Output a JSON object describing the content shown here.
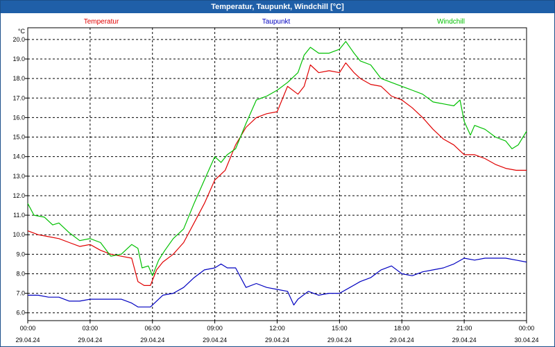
{
  "window": {
    "title": "Temperatur, Taupunkt, Windchill [°C]"
  },
  "chart_data": {
    "type": "line",
    "title": "Temperatur, Taupunkt, Windchill [°C]",
    "ylabel": "°C",
    "xlabel": "",
    "ylim": [
      5.6,
      20.6
    ],
    "xlim_hours": [
      0,
      24
    ],
    "grid": true,
    "legend_placement": "top",
    "y_ticks": [
      "6.0",
      "7.0",
      "8.0",
      "9.0",
      "10.0",
      "11.0",
      "12.0",
      "13.0",
      "14.0",
      "15.0",
      "16.0",
      "17.0",
      "18.0",
      "19.0",
      "20.0"
    ],
    "x_ticks": [
      {
        "time": "00:00",
        "date": "29.04.24"
      },
      {
        "time": "03:00",
        "date": "29.04.24"
      },
      {
        "time": "06:00",
        "date": "29.04.24"
      },
      {
        "time": "09:00",
        "date": "29.04.24"
      },
      {
        "time": "12:00",
        "date": "29.04.24"
      },
      {
        "time": "15:00",
        "date": "29.04.24"
      },
      {
        "time": "18:00",
        "date": "29.04.24"
      },
      {
        "time": "21:00",
        "date": "29.04.24"
      },
      {
        "time": "00:00",
        "date": "30.04.24"
      }
    ],
    "series": [
      {
        "name": "Temperatur",
        "color": "#e00000",
        "points": [
          [
            0,
            10.2
          ],
          [
            0.5,
            10.0
          ],
          [
            1,
            9.9
          ],
          [
            1.5,
            9.8
          ],
          [
            2,
            9.6
          ],
          [
            2.5,
            9.4
          ],
          [
            3,
            9.5
          ],
          [
            3.5,
            9.2
          ],
          [
            4,
            9.0
          ],
          [
            4.5,
            8.9
          ],
          [
            5,
            8.8
          ],
          [
            5.3,
            7.6
          ],
          [
            5.6,
            7.4
          ],
          [
            5.9,
            7.4
          ],
          [
            6.2,
            8.2
          ],
          [
            6.5,
            8.6
          ],
          [
            7,
            9.0
          ],
          [
            7.5,
            9.6
          ],
          [
            8,
            10.6
          ],
          [
            8.5,
            11.6
          ],
          [
            9,
            12.8
          ],
          [
            9.5,
            13.3
          ],
          [
            10,
            14.6
          ],
          [
            10.5,
            15.5
          ],
          [
            11,
            16.0
          ],
          [
            11.5,
            16.2
          ],
          [
            12,
            16.3
          ],
          [
            12.5,
            17.6
          ],
          [
            13,
            17.2
          ],
          [
            13.3,
            17.6
          ],
          [
            13.6,
            18.7
          ],
          [
            14,
            18.3
          ],
          [
            14.5,
            18.4
          ],
          [
            15,
            18.3
          ],
          [
            15.3,
            18.8
          ],
          [
            15.7,
            18.3
          ],
          [
            16,
            18.0
          ],
          [
            16.5,
            17.7
          ],
          [
            17,
            17.6
          ],
          [
            17.5,
            17.1
          ],
          [
            18,
            16.9
          ],
          [
            18.5,
            16.5
          ],
          [
            19,
            16.0
          ],
          [
            19.5,
            15.4
          ],
          [
            20,
            14.9
          ],
          [
            20.5,
            14.6
          ],
          [
            21,
            14.1
          ],
          [
            21.5,
            14.1
          ],
          [
            22,
            13.9
          ],
          [
            22.5,
            13.6
          ],
          [
            23,
            13.4
          ],
          [
            23.5,
            13.3
          ],
          [
            24,
            13.3
          ]
        ]
      },
      {
        "name": "Taupunkt",
        "color": "#0000c0",
        "points": [
          [
            0,
            6.9
          ],
          [
            0.5,
            6.9
          ],
          [
            1,
            6.8
          ],
          [
            1.5,
            6.8
          ],
          [
            2,
            6.6
          ],
          [
            2.5,
            6.6
          ],
          [
            3,
            6.7
          ],
          [
            3.5,
            6.7
          ],
          [
            4,
            6.7
          ],
          [
            4.5,
            6.7
          ],
          [
            5,
            6.5
          ],
          [
            5.3,
            6.3
          ],
          [
            5.6,
            6.3
          ],
          [
            5.9,
            6.3
          ],
          [
            6.2,
            6.6
          ],
          [
            6.5,
            6.9
          ],
          [
            7,
            7.0
          ],
          [
            7.5,
            7.3
          ],
          [
            8,
            7.8
          ],
          [
            8.5,
            8.2
          ],
          [
            9,
            8.3
          ],
          [
            9.3,
            8.5
          ],
          [
            9.6,
            8.3
          ],
          [
            10,
            8.3
          ],
          [
            10.5,
            7.3
          ],
          [
            11,
            7.5
          ],
          [
            11.5,
            7.3
          ],
          [
            12,
            7.2
          ],
          [
            12.5,
            7.1
          ],
          [
            12.8,
            6.4
          ],
          [
            13,
            6.7
          ],
          [
            13.5,
            7.1
          ],
          [
            14,
            6.9
          ],
          [
            14.5,
            7.0
          ],
          [
            15,
            7.0
          ],
          [
            15.5,
            7.3
          ],
          [
            16,
            7.6
          ],
          [
            16.5,
            7.8
          ],
          [
            17,
            8.2
          ],
          [
            17.5,
            8.4
          ],
          [
            18,
            8.0
          ],
          [
            18.5,
            7.9
          ],
          [
            19,
            8.1
          ],
          [
            19.5,
            8.2
          ],
          [
            20,
            8.3
          ],
          [
            20.5,
            8.5
          ],
          [
            21,
            8.8
          ],
          [
            21.5,
            8.7
          ],
          [
            22,
            8.8
          ],
          [
            22.5,
            8.8
          ],
          [
            23,
            8.8
          ],
          [
            23.5,
            8.7
          ],
          [
            24,
            8.6
          ]
        ]
      },
      {
        "name": "Windchill",
        "color": "#00c000",
        "points": [
          [
            0,
            11.6
          ],
          [
            0.3,
            11.0
          ],
          [
            0.8,
            10.9
          ],
          [
            1.2,
            10.5
          ],
          [
            1.5,
            10.6
          ],
          [
            2,
            10.1
          ],
          [
            2.5,
            9.7
          ],
          [
            3,
            9.8
          ],
          [
            3.5,
            9.6
          ],
          [
            4,
            8.9
          ],
          [
            4.5,
            9.0
          ],
          [
            5,
            9.5
          ],
          [
            5.3,
            9.3
          ],
          [
            5.5,
            8.3
          ],
          [
            5.8,
            8.4
          ],
          [
            6,
            7.9
          ],
          [
            6.3,
            8.7
          ],
          [
            6.6,
            9.2
          ],
          [
            7,
            9.8
          ],
          [
            7.5,
            10.3
          ],
          [
            8,
            11.6
          ],
          [
            8.5,
            12.8
          ],
          [
            9,
            14.0
          ],
          [
            9.3,
            13.7
          ],
          [
            9.6,
            14.1
          ],
          [
            10,
            14.4
          ],
          [
            10.5,
            15.7
          ],
          [
            11,
            16.9
          ],
          [
            11.5,
            17.1
          ],
          [
            12,
            17.4
          ],
          [
            12.5,
            17.8
          ],
          [
            13,
            18.3
          ],
          [
            13.3,
            19.2
          ],
          [
            13.6,
            19.6
          ],
          [
            14,
            19.3
          ],
          [
            14.5,
            19.3
          ],
          [
            15,
            19.5
          ],
          [
            15.3,
            19.9
          ],
          [
            15.7,
            19.3
          ],
          [
            16,
            18.9
          ],
          [
            16.5,
            18.7
          ],
          [
            17,
            18.0
          ],
          [
            17.5,
            17.8
          ],
          [
            18,
            17.6
          ],
          [
            18.5,
            17.4
          ],
          [
            19,
            17.2
          ],
          [
            19.5,
            16.8
          ],
          [
            20,
            16.7
          ],
          [
            20.5,
            16.6
          ],
          [
            20.8,
            16.9
          ],
          [
            21,
            15.8
          ],
          [
            21.3,
            15.1
          ],
          [
            21.5,
            15.6
          ],
          [
            22,
            15.4
          ],
          [
            22.5,
            15.0
          ],
          [
            23,
            14.8
          ],
          [
            23.3,
            14.4
          ],
          [
            23.6,
            14.6
          ],
          [
            24,
            15.3
          ]
        ]
      }
    ]
  }
}
